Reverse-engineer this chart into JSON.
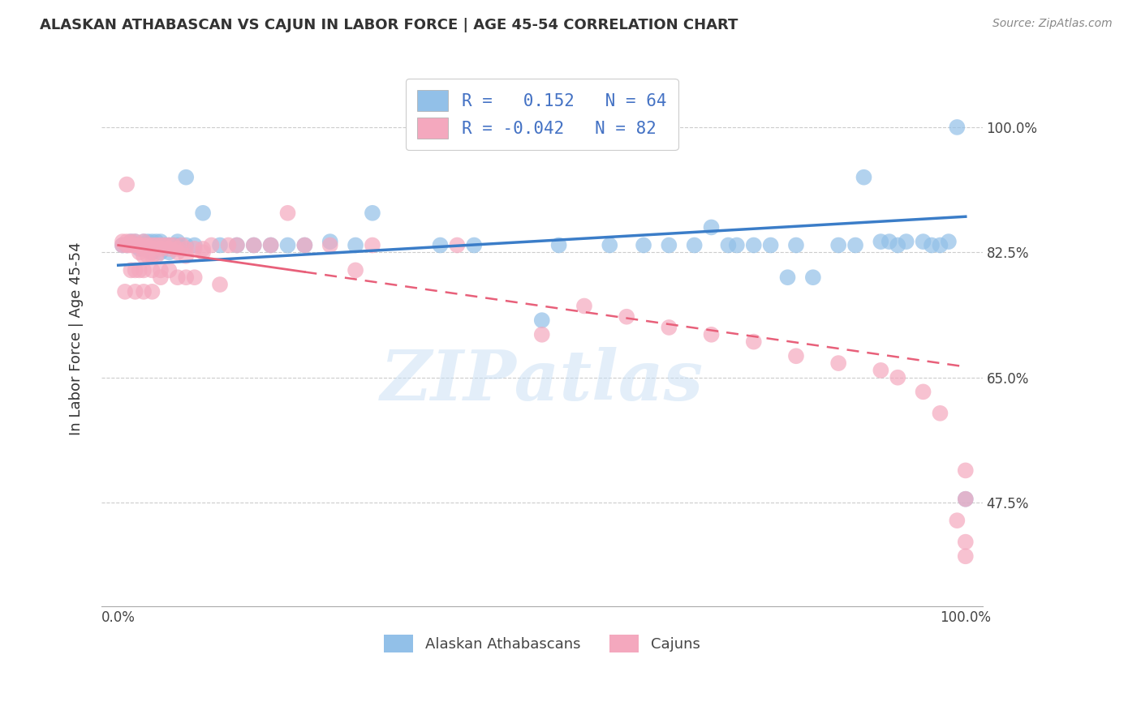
{
  "title": "ALASKAN ATHABASCAN VS CAJUN IN LABOR FORCE | AGE 45-54 CORRELATION CHART",
  "source": "Source: ZipAtlas.com",
  "ylabel": "In Labor Force | Age 45-54",
  "ytick_labels": [
    "47.5%",
    "65.0%",
    "82.5%",
    "100.0%"
  ],
  "ytick_values": [
    0.475,
    0.65,
    0.825,
    1.0
  ],
  "xlim": [
    -0.02,
    1.02
  ],
  "ylim": [
    0.33,
    1.08
  ],
  "legend_line1": "R =   0.152   N = 64",
  "legend_line2": "R = -0.042   N = 82",
  "blue_color": "#92C0E8",
  "pink_color": "#F4A8BE",
  "trend_blue_color": "#3B7DC8",
  "trend_pink_color": "#E8607A",
  "watermark": "ZIPatlas",
  "blue_scatter_x": [
    0.005,
    0.01,
    0.015,
    0.02,
    0.02,
    0.025,
    0.03,
    0.03,
    0.035,
    0.04,
    0.04,
    0.045,
    0.045,
    0.05,
    0.05,
    0.05,
    0.055,
    0.06,
    0.06,
    0.065,
    0.07,
    0.07,
    0.08,
    0.08,
    0.09,
    0.1,
    0.12,
    0.14,
    0.16,
    0.18,
    0.2,
    0.22,
    0.25,
    0.28,
    0.3,
    0.38,
    0.42,
    0.5,
    0.52,
    0.58,
    0.62,
    0.65,
    0.68,
    0.7,
    0.72,
    0.73,
    0.75,
    0.77,
    0.79,
    0.8,
    0.82,
    0.85,
    0.87,
    0.88,
    0.9,
    0.91,
    0.92,
    0.93,
    0.95,
    0.96,
    0.97,
    0.98,
    0.99,
    1.0
  ],
  "blue_scatter_y": [
    0.835,
    0.835,
    0.84,
    0.835,
    0.84,
    0.83,
    0.84,
    0.835,
    0.84,
    0.825,
    0.84,
    0.835,
    0.84,
    0.835,
    0.84,
    0.825,
    0.835,
    0.835,
    0.825,
    0.835,
    0.84,
    0.835,
    0.835,
    0.93,
    0.835,
    0.88,
    0.835,
    0.835,
    0.835,
    0.835,
    0.835,
    0.835,
    0.84,
    0.835,
    0.88,
    0.835,
    0.835,
    0.73,
    0.835,
    0.835,
    0.835,
    0.835,
    0.835,
    0.86,
    0.835,
    0.835,
    0.835,
    0.835,
    0.79,
    0.835,
    0.79,
    0.835,
    0.835,
    0.93,
    0.84,
    0.84,
    0.835,
    0.84,
    0.84,
    0.835,
    0.835,
    0.84,
    1.0,
    0.48
  ],
  "pink_scatter_x": [
    0.005,
    0.005,
    0.008,
    0.01,
    0.01,
    0.01,
    0.012,
    0.015,
    0.015,
    0.015,
    0.018,
    0.02,
    0.02,
    0.02,
    0.02,
    0.025,
    0.025,
    0.025,
    0.03,
    0.03,
    0.03,
    0.03,
    0.03,
    0.03,
    0.035,
    0.035,
    0.04,
    0.04,
    0.04,
    0.04,
    0.04,
    0.045,
    0.045,
    0.05,
    0.05,
    0.05,
    0.05,
    0.055,
    0.06,
    0.06,
    0.06,
    0.065,
    0.07,
    0.07,
    0.07,
    0.075,
    0.08,
    0.08,
    0.08,
    0.09,
    0.09,
    0.1,
    0.1,
    0.11,
    0.12,
    0.13,
    0.14,
    0.16,
    0.18,
    0.2,
    0.22,
    0.25,
    0.28,
    0.3,
    0.4,
    0.5,
    0.55,
    0.6,
    0.65,
    0.7,
    0.75,
    0.8,
    0.85,
    0.9,
    0.92,
    0.95,
    0.97,
    0.99,
    1.0,
    1.0,
    1.0,
    1.0
  ],
  "pink_scatter_y": [
    0.835,
    0.84,
    0.77,
    0.92,
    0.84,
    0.835,
    0.835,
    0.84,
    0.835,
    0.8,
    0.835,
    0.84,
    0.835,
    0.8,
    0.77,
    0.835,
    0.825,
    0.8,
    0.84,
    0.835,
    0.83,
    0.82,
    0.8,
    0.77,
    0.835,
    0.82,
    0.835,
    0.83,
    0.82,
    0.8,
    0.77,
    0.835,
    0.82,
    0.835,
    0.83,
    0.8,
    0.79,
    0.835,
    0.835,
    0.83,
    0.8,
    0.835,
    0.83,
    0.825,
    0.79,
    0.835,
    0.83,
    0.82,
    0.79,
    0.83,
    0.79,
    0.83,
    0.825,
    0.835,
    0.78,
    0.835,
    0.835,
    0.835,
    0.835,
    0.88,
    0.835,
    0.835,
    0.8,
    0.835,
    0.835,
    0.71,
    0.75,
    0.735,
    0.72,
    0.71,
    0.7,
    0.68,
    0.67,
    0.66,
    0.65,
    0.63,
    0.6,
    0.45,
    0.42,
    0.4,
    0.48,
    0.52
  ],
  "blue_trend_x": [
    0.0,
    1.0
  ],
  "blue_trend_y": [
    0.807,
    0.875
  ],
  "pink_trend_x": [
    0.0,
    1.0
  ],
  "pink_trend_y": [
    0.835,
    0.665
  ]
}
